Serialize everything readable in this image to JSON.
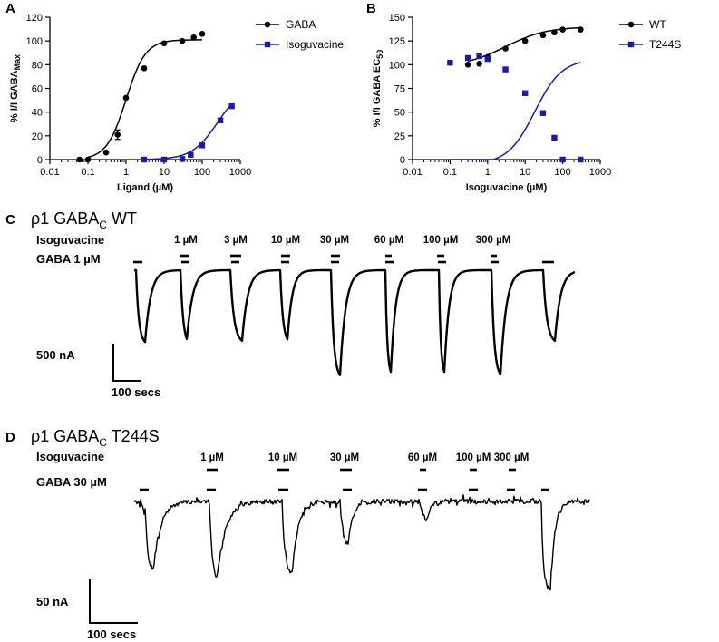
{
  "colors": {
    "black": "#000000",
    "blue": "#1a1aa6"
  },
  "panel_a": {
    "letter": "A",
    "chart_data": {
      "type": "scatter",
      "xscale": "log",
      "xlim": [
        0.01,
        1000
      ],
      "ylim": [
        0,
        120
      ],
      "xticks": [
        0.01,
        0.1,
        1,
        10,
        100,
        1000
      ],
      "xtick_labels": [
        "0.01",
        "0.1",
        "1",
        "10",
        "100",
        "1000"
      ],
      "yticks": [
        0,
        20,
        40,
        60,
        80,
        100,
        120
      ],
      "ytick_labels": [
        "0",
        "20",
        "40",
        "60",
        "80",
        "100",
        "120"
      ],
      "xlabel_main": "Ligand (",
      "xlabel_unit": "µM",
      "xlabel_end": ")",
      "ylabel_main": "% I/I GABA",
      "ylabel_sub": "Max",
      "legend_position": "top-right",
      "series": [
        {
          "name": "GABA",
          "color": "#000000",
          "marker": "circle",
          "x": [
            0.06,
            0.1,
            0.3,
            0.6,
            1,
            3,
            10,
            30,
            60,
            100
          ],
          "y": [
            0,
            0,
            6,
            21,
            52,
            77,
            98,
            100,
            103,
            106
          ],
          "fit": {
            "bottom": 0,
            "top": 101,
            "ec50": 1.0,
            "hill": 1.7,
            "xmin": 0.1,
            "xmax": 100
          }
        },
        {
          "name": "Isoguvacine",
          "color": "#1a1aa6",
          "marker": "square",
          "x": [
            3,
            10,
            30,
            50,
            100,
            300,
            600
          ],
          "y": [
            0,
            0,
            0.5,
            4,
            12,
            33,
            45
          ],
          "fit": {
            "bottom": 0,
            "top": 62,
            "ec50": 250,
            "hill": 1.3,
            "xmin": 3,
            "xmax": 600
          }
        }
      ]
    }
  },
  "panel_b": {
    "letter": "B",
    "chart_data": {
      "type": "scatter",
      "xscale": "log",
      "xlim": [
        0.01,
        1000
      ],
      "ylim": [
        0,
        150
      ],
      "xticks": [
        0.01,
        0.1,
        1,
        10,
        100,
        1000
      ],
      "xtick_labels": [
        "0.01",
        "0.1",
        "1",
        "10",
        "100",
        "1000"
      ],
      "yticks": [
        0,
        25,
        50,
        75,
        100,
        125,
        150
      ],
      "ytick_labels": [
        "0",
        "25",
        "50",
        "75",
        "100",
        "125",
        "150"
      ],
      "xlabel_main": "Isoguvacine (",
      "xlabel_unit": "µM",
      "xlabel_end": ")",
      "ylabel_main": "% I/I GABA EC",
      "ylabel_sub": "50",
      "legend_position": "top-right",
      "series": [
        {
          "name": "WT",
          "color": "#000000",
          "marker": "circle",
          "x": [
            0.3,
            0.6,
            1,
            3,
            10,
            30,
            60,
            100,
            300
          ],
          "y": [
            100,
            101,
            108,
            117,
            125,
            131,
            134,
            137,
            137
          ],
          "fit": {
            "bottom": 98,
            "top": 140,
            "ec50": 3,
            "hill": 0.8,
            "xmin": 0.3,
            "xmax": 300
          }
        },
        {
          "name": "T244S",
          "color": "#1a1aa6",
          "marker": "square",
          "x": [
            0.1,
            0.3,
            0.6,
            1,
            3,
            10,
            30,
            60,
            100,
            300
          ],
          "y": [
            102,
            107,
            109,
            106,
            95,
            70,
            49,
            23,
            0,
            0
          ],
          "fit": {
            "bottom": -5,
            "top": 106,
            "ec50": 18,
            "hill": 1.2,
            "xmin": 0.1,
            "xmax": 300
          }
        }
      ]
    }
  },
  "panel_c": {
    "letter": "C",
    "title_rho": "ρ1 GABA",
    "title_sub": "C",
    "title_rest": " WT",
    "isoguvacine_label": "Isoguvacine",
    "gaba_label": "GABA 1 µM",
    "concentrations": [
      "1 µM",
      "3 µM",
      "10 µM",
      "30 µM",
      "60 µM",
      "100 µM",
      "300 µM"
    ],
    "scale_current": "500 nA",
    "scale_time": "100 secs"
  },
  "panel_d": {
    "letter": "D",
    "title_rho": "ρ1 GABA",
    "title_sub": "C",
    "title_rest": " T244S",
    "isoguvacine_label": "Isoguvacine",
    "gaba_label": "GABA 30 µM",
    "concentrations": [
      "1 µM",
      "10 µM",
      "30 µM",
      "60 µM",
      "100 µM",
      "300 µM"
    ],
    "scale_current": "50 nA",
    "scale_time": "100 secs"
  }
}
